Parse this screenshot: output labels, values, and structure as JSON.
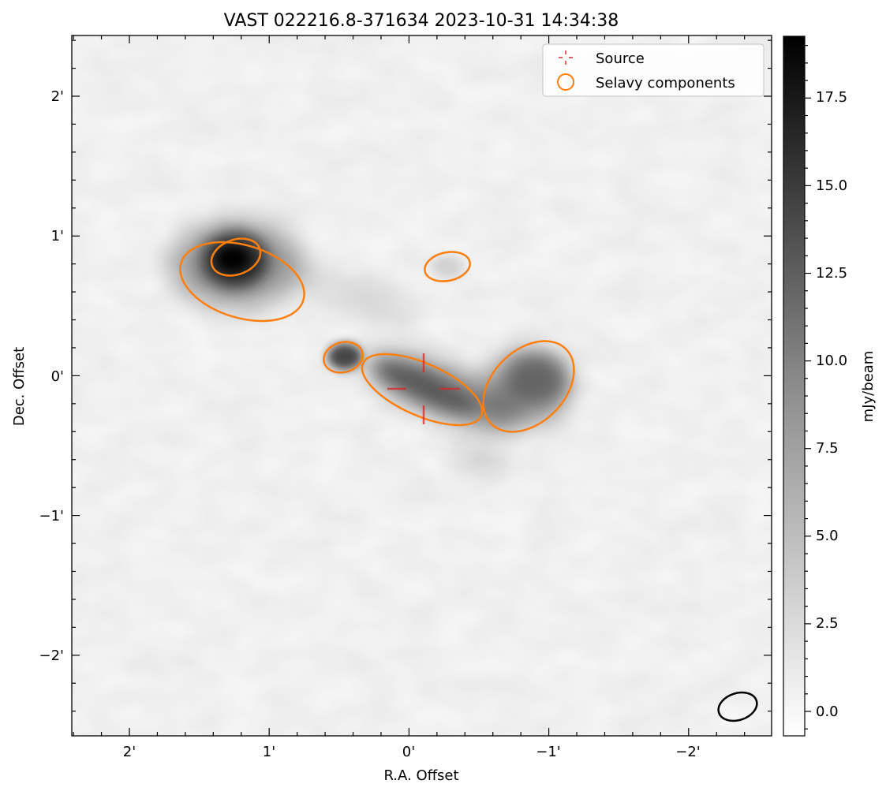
{
  "figure": {
    "title": "VAST 022216.8-371634 2023-10-31 14:34:38",
    "xlabel": "R.A. Offset",
    "ylabel": "Dec. Offset"
  },
  "axes": {
    "x_ticks": [
      "2'",
      "1'",
      "0'",
      "−1'",
      "−2'"
    ],
    "y_ticks": [
      "2'",
      "1'",
      "0'",
      "−1'",
      "−2'"
    ]
  },
  "legend": {
    "placement": "top-right",
    "source_label": "Source",
    "components_label": "Selavy components"
  },
  "colorbar": {
    "label": "mJy/beam",
    "ticks": [
      "17.5",
      "15.0",
      "12.5",
      "10.0",
      "7.5",
      "5.0",
      "2.5",
      "0.0"
    ],
    "colormap": "gray_r"
  },
  "colors": {
    "component": "#ff7f0e",
    "source_marker": "#d62728",
    "beam": "#000000"
  }
}
